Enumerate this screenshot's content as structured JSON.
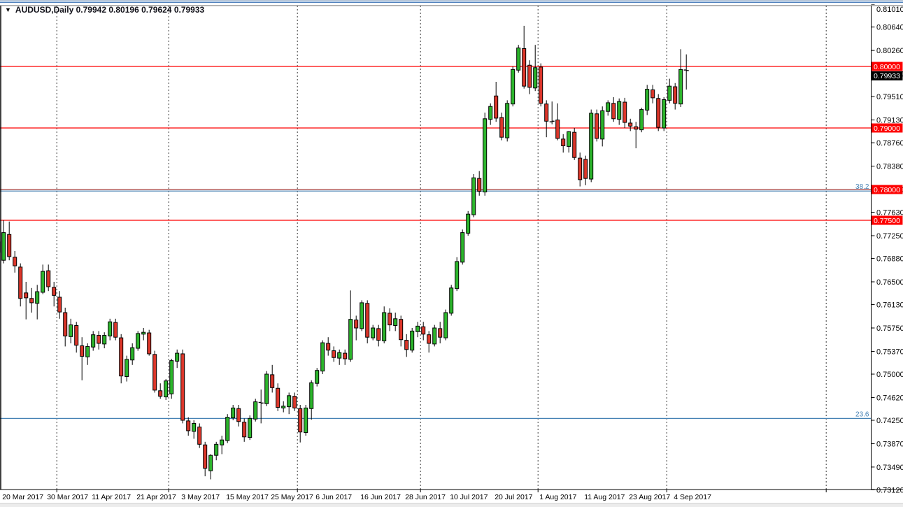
{
  "header": {
    "dropdown_icon": "▼",
    "symbol_period": "AUDUSD,Daily",
    "open": "0.79942",
    "high": "0.80196",
    "low": "0.79624",
    "close": "0.79933"
  },
  "colors": {
    "bull": "#2cb52c",
    "bear": "#dc362a",
    "wick": "#000000",
    "level_line": "#fe0000",
    "level_line_dark": "#a53c3c",
    "fib_line": "#4682b4",
    "grid": "#3a3a3a",
    "axis_text": "#000000",
    "tag_text": "#ffffff",
    "current_tag_bg": "#000000"
  },
  "chart_data": {
    "type": "candlestick",
    "symbol": "AUDUSD",
    "timeframe": "Daily",
    "title": "AUDUSD,Daily 0.79942 0.80196 0.79624 0.79933",
    "ylim": [
      0.7312,
      0.8101
    ],
    "grid": "vertical dashed month separators only",
    "legend_position": "none",
    "y_axis_ticks": [
      "0.81010",
      "0.80640",
      "0.80260",
      "0.79880",
      "0.79510",
      "0.79130",
      "0.78760",
      "0.78380",
      "0.78000",
      "0.77630",
      "0.77250",
      "0.76880",
      "0.76500",
      "0.76130",
      "0.75750",
      "0.75370",
      "0.75000",
      "0.74620",
      "0.74250",
      "0.73870",
      "0.73490",
      "0.73120"
    ],
    "x_axis_labels": [
      "20 Mar 2017",
      "30 Mar 2017",
      "11 Apr 2017",
      "21 Apr 2017",
      "3 May 2017",
      "15 May 2017",
      "25 May 2017",
      "6 Jun 2017",
      "16 Jun 2017",
      "28 Jun 2017",
      "10 Jul 2017",
      "20 Jul 2017",
      "1 Aug 2017",
      "11 Aug 2017",
      "23 Aug 2017",
      "4 Sep 2017"
    ],
    "x_label_every_n_candles": 8,
    "horizontal_levels": [
      {
        "price": 0.8,
        "label": "0.80000",
        "style": "solid-red"
      },
      {
        "price": 0.79,
        "label": "0.79000",
        "style": "solid-red"
      },
      {
        "price": 0.78,
        "label": "0.78000",
        "style": "solid-darkred"
      },
      {
        "price": 0.775,
        "label": "0.77500",
        "style": "solid-red"
      }
    ],
    "fibonacci_levels": [
      {
        "label": "38.2",
        "price": 0.77975
      },
      {
        "label": "23.6",
        "price": 0.7428
      }
    ],
    "current_price": {
      "label": "0.79933",
      "price": 0.79933
    },
    "pre_candle": [
      "17 Mar",
      0.7715,
      0.7748,
      0.7642,
      0.7698
    ],
    "candles": [
      [
        "20 Mar",
        0.7685,
        0.775,
        0.768,
        0.773
      ],
      [
        "21 Mar",
        0.7727,
        0.7748,
        0.7685,
        0.7691
      ],
      [
        "22 Mar",
        0.769,
        0.77,
        0.7665,
        0.7676
      ],
      [
        "23 Mar",
        0.7674,
        0.768,
        0.761,
        0.7623
      ],
      [
        "24 Mar",
        0.7632,
        0.765,
        0.7589,
        0.7624
      ],
      [
        "27 Mar",
        0.7623,
        0.764,
        0.76,
        0.7616
      ],
      [
        "28 Mar",
        0.7615,
        0.7645,
        0.7589,
        0.7634
      ],
      [
        "29 Mar",
        0.7633,
        0.7678,
        0.763,
        0.7667
      ],
      [
        "30 Mar",
        0.7668,
        0.7678,
        0.7635,
        0.7642
      ],
      [
        "31 Mar",
        0.7641,
        0.765,
        0.761,
        0.7628
      ],
      [
        "3 Apr",
        0.7625,
        0.7635,
        0.759,
        0.7601
      ],
      [
        "4 Apr",
        0.76,
        0.7608,
        0.7545,
        0.7562
      ],
      [
        "5 Apr",
        0.7561,
        0.759,
        0.755,
        0.758
      ],
      [
        "6 Apr",
        0.7579,
        0.7585,
        0.7535,
        0.7547
      ],
      [
        "7 Apr",
        0.7546,
        0.756,
        0.749,
        0.7529
      ],
      [
        "10 Apr",
        0.7528,
        0.755,
        0.7515,
        0.7545
      ],
      [
        "11 Apr",
        0.7544,
        0.757,
        0.7538,
        0.7564
      ],
      [
        "12 Apr",
        0.7563,
        0.757,
        0.754,
        0.755
      ],
      [
        "13 Apr",
        0.7549,
        0.7568,
        0.7542,
        0.7563
      ],
      [
        "14 Apr",
        0.7562,
        0.759,
        0.7555,
        0.7585
      ],
      [
        "17 Apr",
        0.7584,
        0.759,
        0.7555,
        0.756
      ],
      [
        "18 Apr",
        0.7559,
        0.7565,
        0.7485,
        0.7497
      ],
      [
        "19 Apr",
        0.7496,
        0.753,
        0.7488,
        0.7524
      ],
      [
        "20 Apr",
        0.7523,
        0.755,
        0.7515,
        0.7543
      ],
      [
        "21 Apr",
        0.7542,
        0.757,
        0.7538,
        0.7566
      ],
      [
        "24 Apr",
        0.7565,
        0.7575,
        0.7555,
        0.7568
      ],
      [
        "25 Apr",
        0.7567,
        0.7572,
        0.753,
        0.7533
      ],
      [
        "26 Apr",
        0.7532,
        0.7538,
        0.747,
        0.7474
      ],
      [
        "27 Apr",
        0.7473,
        0.7485,
        0.746,
        0.7464
      ],
      [
        "28 Apr",
        0.7463,
        0.7492,
        0.7458,
        0.7489
      ],
      [
        "1 May",
        0.7468,
        0.7525,
        0.746,
        0.7522
      ],
      [
        "2 May",
        0.7521,
        0.754,
        0.751,
        0.7534
      ],
      [
        "3 May",
        0.7533,
        0.754,
        0.742,
        0.7425
      ],
      [
        "4 May",
        0.7424,
        0.743,
        0.74,
        0.7408
      ],
      [
        "5 May",
        0.7407,
        0.7425,
        0.7395,
        0.742
      ],
      [
        "8 May",
        0.7414,
        0.742,
        0.738,
        0.7386
      ],
      [
        "9 May",
        0.7385,
        0.739,
        0.7334,
        0.7347
      ],
      [
        "10 May",
        0.7343,
        0.737,
        0.7329,
        0.7368
      ],
      [
        "11 May",
        0.7368,
        0.739,
        0.736,
        0.7386
      ],
      [
        "12 May",
        0.7385,
        0.74,
        0.737,
        0.7393
      ],
      [
        "15 May",
        0.7392,
        0.7435,
        0.7388,
        0.743
      ],
      [
        "16 May",
        0.7429,
        0.745,
        0.7425,
        0.7445
      ],
      [
        "17 May",
        0.7444,
        0.745,
        0.7415,
        0.7423
      ],
      [
        "18 May",
        0.7422,
        0.7428,
        0.739,
        0.7398
      ],
      [
        "19 May",
        0.7397,
        0.7433,
        0.7393,
        0.7428
      ],
      [
        "22 May",
        0.7427,
        0.746,
        0.7423,
        0.7455
      ],
      [
        "23 May",
        0.7454,
        0.7475,
        0.742,
        0.7453
      ],
      [
        "24 May",
        0.7452,
        0.7505,
        0.7448,
        0.75
      ],
      [
        "25 May",
        0.7499,
        0.7515,
        0.747,
        0.7478
      ],
      [
        "26 May",
        0.7477,
        0.7485,
        0.744,
        0.7446
      ],
      [
        "29 May",
        0.7445,
        0.7456,
        0.7438,
        0.7448
      ],
      [
        "30 May",
        0.7447,
        0.747,
        0.7435,
        0.7465
      ],
      [
        "31 May",
        0.7464,
        0.747,
        0.744,
        0.7445
      ],
      [
        "1 Jun",
        0.7444,
        0.745,
        0.7389,
        0.7406
      ],
      [
        "2 Jun",
        0.7405,
        0.745,
        0.74,
        0.7445
      ],
      [
        "5 Jun",
        0.7444,
        0.749,
        0.7426,
        0.7486
      ],
      [
        "6 Jun",
        0.7485,
        0.751,
        0.748,
        0.7506
      ],
      [
        "7 Jun",
        0.7505,
        0.7555,
        0.75,
        0.7551
      ],
      [
        "8 Jun",
        0.755,
        0.756,
        0.753,
        0.7539
      ],
      [
        "9 Jun",
        0.7538,
        0.7545,
        0.752,
        0.7527
      ],
      [
        "12 Jun",
        0.7526,
        0.754,
        0.7515,
        0.7535
      ],
      [
        "13 Jun",
        0.7534,
        0.754,
        0.7515,
        0.7525
      ],
      [
        "14 Jun",
        0.7524,
        0.7636,
        0.752,
        0.7589
      ],
      [
        "15 Jun",
        0.7588,
        0.7595,
        0.7555,
        0.7575
      ],
      [
        "16 Jun",
        0.7574,
        0.762,
        0.757,
        0.7616
      ],
      [
        "19 Jun",
        0.7615,
        0.762,
        0.755,
        0.756
      ],
      [
        "20 Jun",
        0.7559,
        0.758,
        0.7555,
        0.7575
      ],
      [
        "21 Jun",
        0.7574,
        0.758,
        0.7545,
        0.7555
      ],
      [
        "22 Jun",
        0.7554,
        0.761,
        0.755,
        0.76
      ],
      [
        "23 Jun",
        0.7599,
        0.7607,
        0.757,
        0.758
      ],
      [
        "26 Jun",
        0.7579,
        0.76,
        0.757,
        0.759
      ],
      [
        "27 Jun",
        0.7589,
        0.7595,
        0.7545,
        0.7556
      ],
      [
        "28 Jun",
        0.7555,
        0.7565,
        0.7528,
        0.754
      ],
      [
        "29 Jun",
        0.7539,
        0.7575,
        0.7535,
        0.757
      ],
      [
        "30 Jun",
        0.7569,
        0.7585,
        0.756,
        0.7578
      ],
      [
        "3 Jul",
        0.7577,
        0.7585,
        0.7555,
        0.7565
      ],
      [
        "4 Jul",
        0.7564,
        0.757,
        0.7535,
        0.755
      ],
      [
        "5 Jul",
        0.7549,
        0.758,
        0.7545,
        0.7575
      ],
      [
        "6 Jul",
        0.7574,
        0.7585,
        0.755,
        0.756
      ],
      [
        "7 Jul",
        0.7559,
        0.7605,
        0.7555,
        0.76
      ],
      [
        "10 Jul",
        0.7599,
        0.7645,
        0.7595,
        0.764
      ],
      [
        "11 Jul",
        0.7639,
        0.769,
        0.7635,
        0.7683
      ],
      [
        "12 Jul",
        0.7682,
        0.7735,
        0.7678,
        0.773
      ],
      [
        "13 Jul",
        0.7729,
        0.7765,
        0.7725,
        0.776
      ],
      [
        "14 Jul",
        0.7759,
        0.7825,
        0.7755,
        0.7819
      ],
      [
        "17 Jul",
        0.7818,
        0.783,
        0.779,
        0.7797
      ],
      [
        "18 Jul",
        0.7796,
        0.7925,
        0.779,
        0.7915
      ],
      [
        "19 Jul",
        0.7914,
        0.794,
        0.7905,
        0.7935
      ],
      [
        "20 Jul",
        0.7952,
        0.7975,
        0.791,
        0.7916
      ],
      [
        "21 Jul",
        0.7917,
        0.7925,
        0.788,
        0.7885
      ],
      [
        "24 Jul",
        0.7884,
        0.7945,
        0.7878,
        0.794
      ],
      [
        "25 Jul",
        0.7939,
        0.8,
        0.7935,
        0.7995
      ],
      [
        "26 Jul",
        0.7994,
        0.8035,
        0.799,
        0.803
      ],
      [
        "27 Jul",
        0.8029,
        0.8066,
        0.7964,
        0.7968
      ],
      [
        "28 Jul",
        0.8002,
        0.801,
        0.7955,
        0.7966
      ],
      [
        "31 Jul",
        0.7965,
        0.8035,
        0.796,
        0.7998
      ],
      [
        "1 Aug",
        0.7999,
        0.8005,
        0.7935,
        0.794
      ],
      [
        "2 Aug",
        0.7939,
        0.7945,
        0.7885,
        0.7911
      ],
      [
        "3 Aug",
        0.791,
        0.7943,
        0.7906,
        0.7911
      ],
      [
        "4 Aug",
        0.7913,
        0.794,
        0.788,
        0.7883
      ],
      [
        "7 Aug",
        0.7882,
        0.789,
        0.786,
        0.7871
      ],
      [
        "8 Aug",
        0.787,
        0.7895,
        0.786,
        0.7894
      ],
      [
        "9 Aug",
        0.7893,
        0.79,
        0.7848,
        0.7852
      ],
      [
        "10 Aug",
        0.7851,
        0.786,
        0.7805,
        0.7816
      ],
      [
        "11 Aug",
        0.7849,
        0.7855,
        0.7807,
        0.7818
      ],
      [
        "14 Aug",
        0.7817,
        0.793,
        0.7812,
        0.7924
      ],
      [
        "15 Aug",
        0.7923,
        0.793,
        0.7878,
        0.7883
      ],
      [
        "16 Aug",
        0.7882,
        0.7935,
        0.787,
        0.7928
      ],
      [
        "17 Aug",
        0.7927,
        0.7945,
        0.792,
        0.7941
      ],
      [
        "18 Aug",
        0.794,
        0.795,
        0.791,
        0.7915
      ],
      [
        "21 Aug",
        0.7914,
        0.7948,
        0.7905,
        0.7943
      ],
      [
        "22 Aug",
        0.7942,
        0.7949,
        0.79,
        0.7909
      ],
      [
        "23 Aug",
        0.7908,
        0.7915,
        0.7895,
        0.7903
      ],
      [
        "24 Aug",
        0.7902,
        0.791,
        0.7867,
        0.7898
      ],
      [
        "25 Aug",
        0.7897,
        0.7933,
        0.7893,
        0.793
      ],
      [
        "28 Aug",
        0.7929,
        0.797,
        0.7921,
        0.7963
      ],
      [
        "29 Aug",
        0.7962,
        0.797,
        0.794,
        0.7949
      ],
      [
        "30 Aug",
        0.7948,
        0.7955,
        0.7895,
        0.7901
      ],
      [
        "31 Aug",
        0.79,
        0.795,
        0.7895,
        0.7946
      ],
      [
        "1 Sep",
        0.7945,
        0.798,
        0.794,
        0.7968
      ],
      [
        "4 Sep",
        0.7967,
        0.7973,
        0.793,
        0.794
      ],
      [
        "5 Sep",
        0.7939,
        0.8028,
        0.7934,
        0.7995
      ],
      [
        "6 Sep",
        0.79942,
        0.80196,
        0.79624,
        0.79933
      ]
    ]
  }
}
